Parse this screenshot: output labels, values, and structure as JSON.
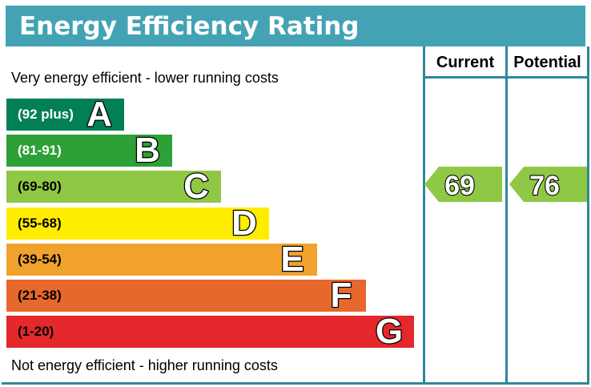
{
  "title": "Energy Efficiency Rating",
  "top_label": "Very energy efficient - lower running costs",
  "bottom_label": "Not energy efficient - higher running costs",
  "columns": {
    "current": "Current",
    "potential": "Potential"
  },
  "colors": {
    "banner": "#43A3B5",
    "table_line": "#2E8899",
    "arrow_text": "#ffffff"
  },
  "chart_data": {
    "type": "bar",
    "subtype": "energy-efficiency-rating",
    "bands": [
      {
        "grade": "A",
        "range": "(92 plus)",
        "min": 92,
        "color": "#008054",
        "text_color": "#ffffff"
      },
      {
        "grade": "B",
        "range": "(81-91)",
        "min": 81,
        "color": "#2DA037",
        "text_color": "#ffffff"
      },
      {
        "grade": "C",
        "range": "(69-80)",
        "min": 69,
        "color": "#8FC845",
        "text_color": "#000000"
      },
      {
        "grade": "D",
        "range": "(55-68)",
        "min": 55,
        "color": "#FFED00",
        "text_color": "#000000"
      },
      {
        "grade": "E",
        "range": "(39-54)",
        "min": 39,
        "color": "#F0A22D",
        "text_color": "#000000"
      },
      {
        "grade": "F",
        "range": "(21-38)",
        "min": 21,
        "color": "#E7682C",
        "text_color": "#000000"
      },
      {
        "grade": "G",
        "range": "(1-20)",
        "min": 1,
        "color": "#E4282B",
        "text_color": "#000000"
      }
    ],
    "current": {
      "value": 69,
      "band": "C",
      "color": "#8FC845"
    },
    "potential": {
      "value": 76,
      "band": "C",
      "color": "#8FC845"
    }
  }
}
